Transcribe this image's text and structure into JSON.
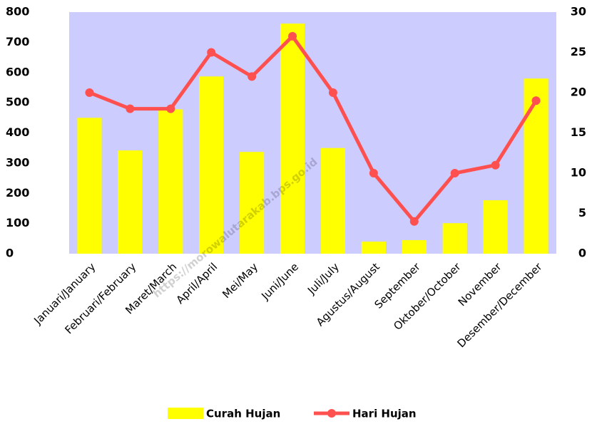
{
  "chart_data": {
    "type": "bar_line",
    "categories": [
      "Januari/January",
      "Februari/February",
      "Maret/March",
      "April/April",
      "Mei/May",
      "Juni/June",
      "Juli/July",
      "Agustus/August",
      "September",
      "Oktober/October",
      "November",
      "Desember/December"
    ],
    "series": [
      {
        "name": "Curah Hujan",
        "type": "bar",
        "color": "#ffff00",
        "axis": "y",
        "values": [
          450,
          342,
          478,
          587,
          337,
          762,
          350,
          40,
          45,
          101,
          177,
          580
        ]
      },
      {
        "name": "Hari Hujan",
        "type": "line",
        "color": "#ff5050",
        "axis": "y2",
        "values": [
          20,
          18,
          18,
          25,
          22,
          27,
          20,
          10,
          4,
          10,
          11,
          19
        ]
      }
    ],
    "ylim": [
      0,
      800
    ],
    "yticks": [
      0,
      100,
      200,
      300,
      400,
      500,
      600,
      700,
      800
    ],
    "y2lim": [
      0,
      30
    ],
    "y2ticks": [
      0,
      5,
      10,
      15,
      20,
      25,
      30
    ],
    "plot_background": "#ccccff",
    "legend": "bottom",
    "watermark": "https://morowalutarakab.bps.go.id"
  }
}
